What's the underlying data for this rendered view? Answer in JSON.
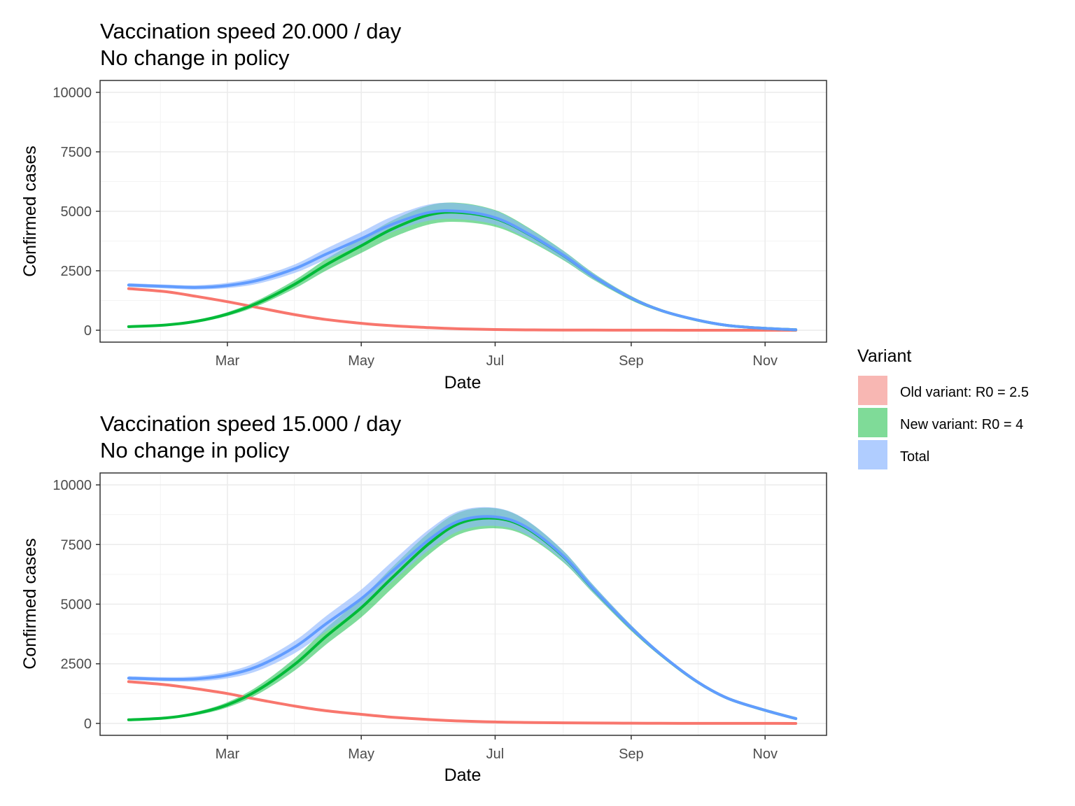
{
  "colors": {
    "old": "#F8766D",
    "new": "#00BA38",
    "total": "#619CFF",
    "old_band": "#F8766D",
    "new_band": "#00BA38",
    "total_band": "#8AB4FF",
    "grid_major": "#EBEBEB",
    "grid_minor": "#F3F3F3",
    "panel_border": "#333333"
  },
  "legend": {
    "title": "Variant",
    "items": [
      {
        "key": "old",
        "label": "Old variant: R0 = 2.5"
      },
      {
        "key": "new",
        "label": "New variant: R0 = 4"
      },
      {
        "key": "total",
        "label": "Total"
      }
    ]
  },
  "chart_data": [
    {
      "type": "line",
      "title_line1": "Vaccination speed 20.000 / day",
      "title_line2": "No change in policy",
      "xlabel": "Date",
      "ylabel": "Confirmed cases",
      "x_ticks": [
        "Mar",
        "May",
        "Jul",
        "Sep",
        "Nov"
      ],
      "x_tick_dates": [
        "03-01",
        "05-01",
        "07-01",
        "09-01",
        "11-01"
      ],
      "y_ticks": [
        0,
        2500,
        5000,
        7500,
        10000
      ],
      "xlim": [
        "2021-01-02",
        "2021-11-29"
      ],
      "ylim": [
        -500,
        10500
      ],
      "grid": true,
      "legend_position": "right",
      "x": [
        "2021-01-15",
        "2021-02-01",
        "2021-02-15",
        "2021-03-01",
        "2021-03-15",
        "2021-04-01",
        "2021-04-15",
        "2021-05-01",
        "2021-05-15",
        "2021-06-01",
        "2021-06-15",
        "2021-07-01",
        "2021-07-15",
        "2021-08-01",
        "2021-08-15",
        "2021-09-01",
        "2021-09-15",
        "2021-10-01",
        "2021-10-15",
        "2021-11-01",
        "2021-11-15"
      ],
      "series": [
        {
          "key": "old",
          "name": "Old variant: R0 = 2.5",
          "values": [
            1750,
            1620,
            1420,
            1200,
            950,
            650,
            450,
            290,
            190,
            110,
            60,
            30,
            15,
            8,
            5,
            3,
            2,
            1,
            1,
            0,
            0
          ],
          "band": [
            0,
            0,
            0,
            0,
            0,
            0,
            0,
            0,
            0,
            0,
            0,
            0,
            0,
            0,
            0,
            0,
            0,
            0,
            0,
            0,
            0
          ]
        },
        {
          "key": "new",
          "name": "New variant: R0 = 4",
          "values": [
            150,
            220,
            380,
            680,
            1150,
            1950,
            2750,
            3550,
            4250,
            4850,
            4950,
            4700,
            4100,
            3150,
            2250,
            1350,
            820,
            430,
            200,
            80,
            20
          ],
          "band": [
            30,
            40,
            60,
            80,
            120,
            180,
            240,
            300,
            360,
            400,
            400,
            350,
            280,
            200,
            140,
            90,
            60,
            40,
            25,
            15,
            10
          ]
        },
        {
          "key": "total",
          "name": "Total",
          "values": [
            1900,
            1840,
            1800,
            1880,
            2100,
            2600,
            3200,
            3850,
            4450,
            4950,
            5000,
            4730,
            4115,
            3158,
            2255,
            1353,
            822,
            431,
            201,
            80,
            20
          ],
          "band": [
            80,
            80,
            90,
            110,
            140,
            180,
            230,
            280,
            320,
            340,
            330,
            290,
            230,
            170,
            120,
            80,
            50,
            35,
            20,
            12,
            8
          ]
        }
      ]
    },
    {
      "type": "line",
      "title_line1": "Vaccination speed 15.000 / day",
      "title_line2": "No change in policy",
      "xlabel": "Date",
      "ylabel": "Confirmed cases",
      "x_ticks": [
        "Mar",
        "May",
        "Jul",
        "Sep",
        "Nov"
      ],
      "x_tick_dates": [
        "03-01",
        "05-01",
        "07-01",
        "09-01",
        "11-01"
      ],
      "y_ticks": [
        0,
        2500,
        5000,
        7500,
        10000
      ],
      "xlim": [
        "2021-01-02",
        "2021-11-29"
      ],
      "ylim": [
        -500,
        10500
      ],
      "grid": true,
      "legend_position": "right",
      "x": [
        "2021-01-15",
        "2021-02-01",
        "2021-02-15",
        "2021-03-01",
        "2021-03-15",
        "2021-04-01",
        "2021-04-15",
        "2021-05-01",
        "2021-05-15",
        "2021-06-01",
        "2021-06-15",
        "2021-07-01",
        "2021-07-15",
        "2021-08-01",
        "2021-08-15",
        "2021-09-01",
        "2021-09-15",
        "2021-10-01",
        "2021-10-15",
        "2021-11-01",
        "2021-11-15"
      ],
      "series": [
        {
          "key": "old",
          "name": "Old variant: R0 = 2.5",
          "values": [
            1750,
            1620,
            1450,
            1250,
            1000,
            720,
            530,
            380,
            260,
            160,
            100,
            60,
            40,
            25,
            15,
            10,
            5,
            3,
            2,
            1,
            0
          ],
          "band": [
            0,
            0,
            0,
            0,
            0,
            0,
            0,
            0,
            0,
            0,
            0,
            0,
            0,
            0,
            0,
            0,
            0,
            0,
            0,
            0,
            0
          ]
        },
        {
          "key": "new",
          "name": "New variant: R0 = 4",
          "values": [
            150,
            230,
            420,
            780,
            1400,
            2500,
            3650,
            4850,
            6100,
            7550,
            8400,
            8600,
            8200,
            7000,
            5600,
            4000,
            2850,
            1750,
            1050,
            550,
            200
          ],
          "band": [
            30,
            40,
            70,
            110,
            170,
            260,
            340,
            400,
            440,
            460,
            460,
            420,
            330,
            240,
            170,
            120,
            80,
            55,
            35,
            20,
            10
          ]
        },
        {
          "key": "total",
          "name": "Total",
          "values": [
            1900,
            1850,
            1870,
            2030,
            2400,
            3220,
            4180,
            5230,
            6360,
            7710,
            8500,
            8660,
            8240,
            7025,
            5615,
            4010,
            2855,
            1753,
            1052,
            551,
            200
          ],
          "band": [
            80,
            90,
            110,
            140,
            190,
            260,
            320,
            380,
            420,
            430,
            420,
            380,
            300,
            220,
            160,
            110,
            80,
            55,
            35,
            20,
            10
          ]
        }
      ]
    }
  ]
}
